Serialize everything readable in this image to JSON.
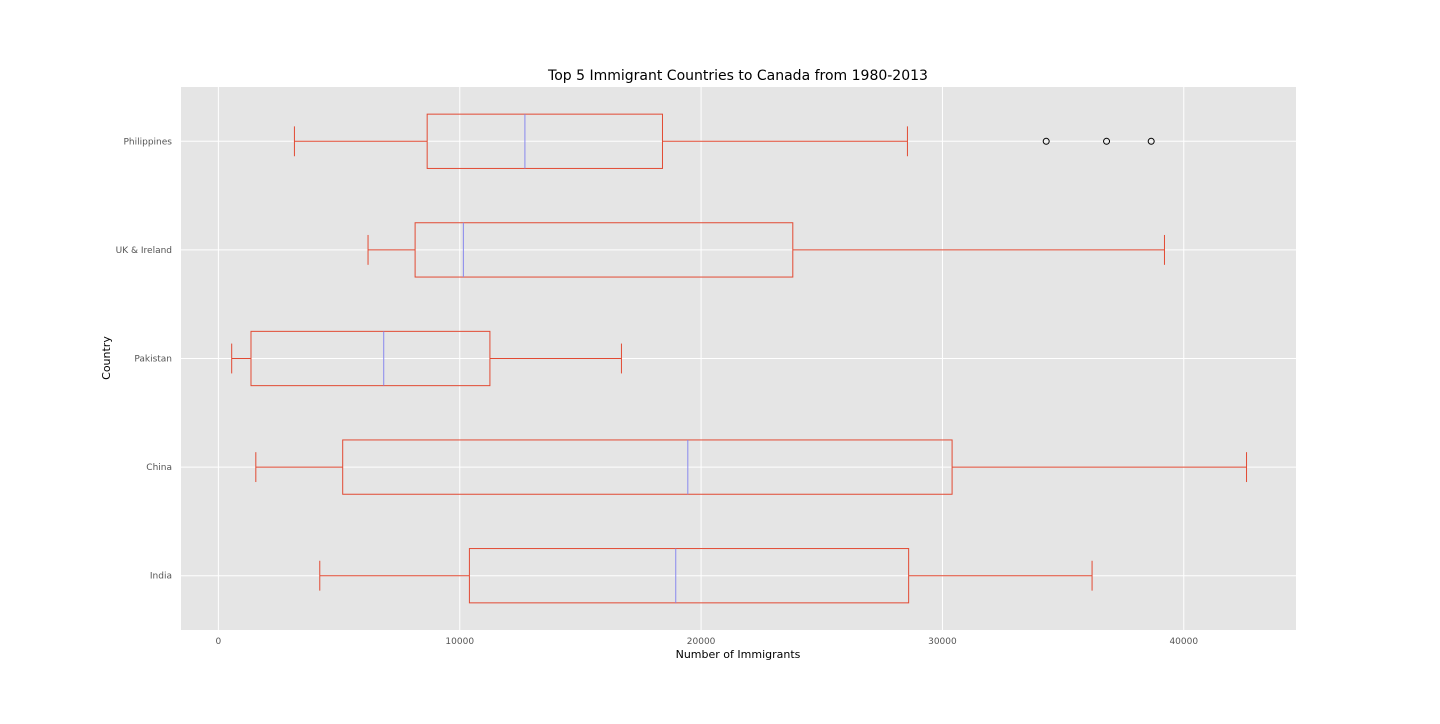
{
  "chart_data": {
    "type": "box",
    "orientation": "horizontal",
    "title": "Top 5 Immigrant Countries to Canada from 1980-2013",
    "xlabel": "Number of Immigrants",
    "ylabel": "Country",
    "xlim": [
      -1550,
      44650
    ],
    "xticks": [
      0,
      10000,
      20000,
      30000,
      40000
    ],
    "xtick_labels": [
      "0",
      "10000",
      "20000",
      "30000",
      "40000"
    ],
    "grid": true,
    "categories": [
      "India",
      "China",
      "Pakistan",
      "UK & Ireland",
      "Philippines"
    ],
    "series": [
      {
        "category": "India",
        "whisker_low": 4200,
        "q1": 10400,
        "median": 18950,
        "q3": 28600,
        "whisker_high": 36200,
        "outliers": []
      },
      {
        "category": "China",
        "whisker_low": 1550,
        "q1": 5150,
        "median": 19450,
        "q3": 30400,
        "whisker_high": 42600,
        "outliers": []
      },
      {
        "category": "Pakistan",
        "whisker_low": 550,
        "q1": 1350,
        "median": 6850,
        "q3": 11250,
        "whisker_high": 16700,
        "outliers": []
      },
      {
        "category": "UK & Ireland",
        "whisker_low": 6200,
        "q1": 8150,
        "median": 10150,
        "q3": 23800,
        "whisker_high": 39200,
        "outliers": []
      },
      {
        "category": "Philippines",
        "whisker_low": 3150,
        "q1": 8650,
        "median": 12700,
        "q3": 18400,
        "whisker_high": 28550,
        "outliers": [
          34300,
          36800,
          38650
        ]
      }
    ],
    "colors": {
      "background": "#e5e5e5",
      "grid": "#ffffff",
      "box": "#e24a33",
      "median": "#8888ee",
      "outlier": "#000000"
    }
  }
}
